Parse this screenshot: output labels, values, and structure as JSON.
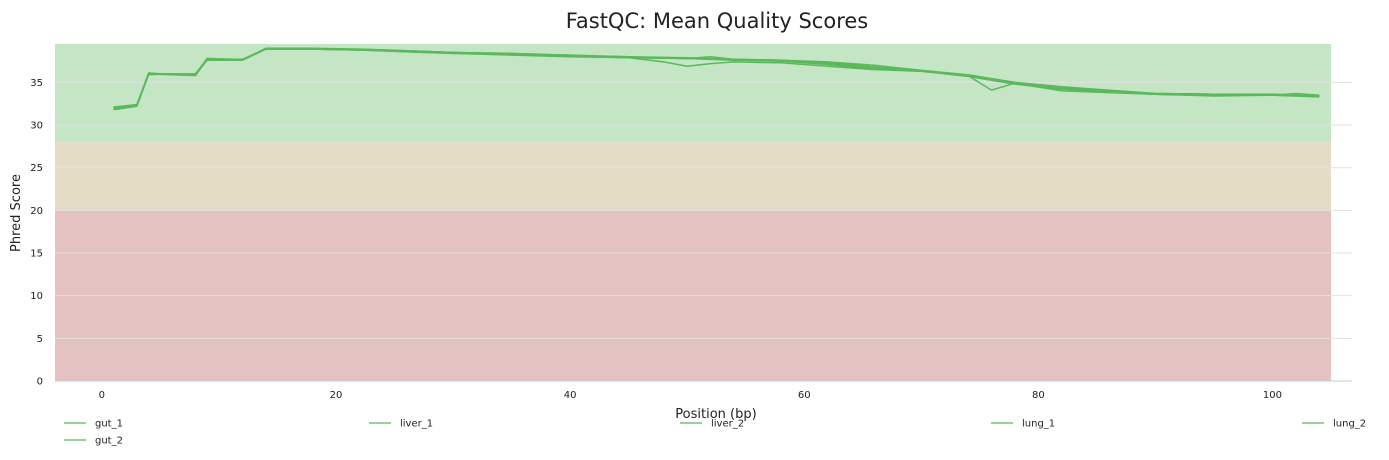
{
  "chart_data": {
    "type": "line",
    "title": "FastQC: Mean Quality Scores",
    "xlabel": "Position (bp)",
    "ylabel": "Phred Score",
    "xlim": [
      -4,
      105
    ],
    "ylim": [
      0,
      39.5
    ],
    "x_ticks": [
      0,
      20,
      40,
      60,
      80,
      100
    ],
    "y_ticks": [
      0,
      5,
      10,
      15,
      20,
      25,
      30,
      35
    ],
    "grid": true,
    "legend_position": "bottom",
    "quality_bands": [
      {
        "from": 0,
        "to": 20,
        "color": "#e4c2c2"
      },
      {
        "from": 20,
        "to": 28,
        "color": "#e5dcc6"
      },
      {
        "from": 28,
        "to": 39.5,
        "color": "#c5e6c5"
      }
    ],
    "line_color": "#5cb85c",
    "series": [
      {
        "name": "gut_1",
        "x": [
          1,
          3,
          4,
          6,
          8,
          9,
          12,
          14,
          18,
          22,
          26,
          30,
          35,
          40,
          45,
          48,
          50,
          52,
          54,
          58,
          62,
          66,
          70,
          74,
          76,
          78,
          82,
          86,
          90,
          95,
          100,
          104
        ],
        "y": [
          31.8,
          32.2,
          36.0,
          35.9,
          35.8,
          37.7,
          37.6,
          38.9,
          38.9,
          38.8,
          38.7,
          38.5,
          38.3,
          38.1,
          37.9,
          37.4,
          36.9,
          37.2,
          37.4,
          37.3,
          36.9,
          36.5,
          36.3,
          35.8,
          34.1,
          34.9,
          34.0,
          33.8,
          33.6,
          33.5,
          33.5,
          33.3
        ]
      },
      {
        "name": "gut_2",
        "x": [
          1,
          3,
          4,
          6,
          8,
          9,
          12,
          14,
          18,
          22,
          26,
          30,
          35,
          40,
          45,
          50,
          54,
          58,
          62,
          66,
          70,
          74,
          78,
          82,
          86,
          90,
          95,
          100,
          104
        ],
        "y": [
          32.0,
          32.4,
          36.1,
          35.9,
          36.0,
          37.8,
          37.6,
          39.0,
          39.0,
          38.9,
          38.7,
          38.5,
          38.4,
          38.2,
          38.0,
          37.9,
          37.7,
          37.6,
          37.4,
          37.0,
          36.4,
          35.8,
          34.9,
          34.4,
          34.0,
          33.6,
          33.5,
          33.5,
          33.4
        ]
      },
      {
        "name": "liver_1",
        "x": [
          1,
          3,
          4,
          6,
          8,
          9,
          12,
          14,
          18,
          22,
          26,
          30,
          35,
          40,
          45,
          50,
          52,
          54,
          58,
          62,
          66,
          70,
          74,
          78,
          82,
          86,
          90,
          95,
          100,
          104
        ],
        "y": [
          31.9,
          32.3,
          36.0,
          36.0,
          35.9,
          37.7,
          37.7,
          38.9,
          38.9,
          38.8,
          38.6,
          38.4,
          38.3,
          38.1,
          37.9,
          37.8,
          38.0,
          37.7,
          37.6,
          37.3,
          36.8,
          36.4,
          35.8,
          35.0,
          34.5,
          34.1,
          33.7,
          33.6,
          33.5,
          33.5
        ]
      },
      {
        "name": "liver_2",
        "x": [
          1,
          3,
          4,
          6,
          8,
          9,
          12,
          14,
          18,
          22,
          26,
          30,
          35,
          40,
          45,
          50,
          54,
          58,
          62,
          66,
          70,
          74,
          78,
          82,
          86,
          90,
          95,
          100,
          104
        ],
        "y": [
          32.1,
          32.4,
          36.1,
          35.9,
          36.0,
          37.7,
          37.6,
          38.9,
          38.9,
          38.8,
          38.7,
          38.5,
          38.3,
          38.2,
          37.9,
          37.8,
          37.6,
          37.5,
          37.2,
          36.7,
          36.3,
          35.7,
          34.8,
          34.2,
          33.9,
          33.7,
          33.6,
          33.6,
          33.4
        ]
      },
      {
        "name": "lung_1",
        "x": [
          1,
          3,
          4,
          6,
          8,
          9,
          12,
          14,
          18,
          22,
          26,
          30,
          35,
          40,
          45,
          50,
          54,
          58,
          62,
          66,
          70,
          74,
          78,
          82,
          86,
          90,
          95,
          100,
          102,
          104
        ],
        "y": [
          32.0,
          32.4,
          36.0,
          36.0,
          36.0,
          37.6,
          37.6,
          38.9,
          38.9,
          38.8,
          38.6,
          38.4,
          38.2,
          38.0,
          37.9,
          37.8,
          37.7,
          37.5,
          37.1,
          36.6,
          36.3,
          35.8,
          34.9,
          34.3,
          33.9,
          33.6,
          33.4,
          33.5,
          33.7,
          33.5
        ]
      },
      {
        "name": "lung_2",
        "x": [
          1,
          3,
          4,
          6,
          8,
          9,
          12,
          14,
          18,
          22,
          26,
          30,
          35,
          40,
          45,
          50,
          54,
          58,
          62,
          66,
          70,
          74,
          78,
          82,
          86,
          90,
          95,
          100,
          104
        ],
        "y": [
          32.1,
          32.3,
          35.9,
          36.0,
          35.9,
          37.8,
          37.7,
          38.9,
          38.9,
          38.9,
          38.7,
          38.5,
          38.4,
          38.1,
          38.0,
          37.8,
          37.7,
          37.6,
          37.3,
          36.8,
          36.4,
          35.9,
          35.0,
          34.4,
          34.0,
          33.7,
          33.6,
          33.6,
          33.3
        ]
      }
    ]
  }
}
